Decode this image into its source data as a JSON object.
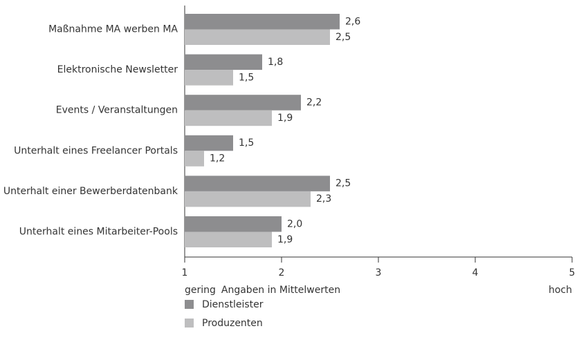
{
  "chart_data": {
    "type": "barh",
    "categories": [
      "Maßnahme MA werben MA",
      "Elektronische Newsletter",
      "Events / Veranstaltungen",
      "Unterhalt eines Freelancer Portals",
      "Unterhalt einer Bewerberdatenbank",
      "Unterhalt eines Mitarbeiter-Pools"
    ],
    "series": [
      {
        "name": "Dienstleister",
        "color": "#8d8d8f",
        "values": [
          2.6,
          1.8,
          2.2,
          1.5,
          2.5,
          2.0
        ],
        "value_labels": [
          "2,6",
          "1,8",
          "2,2",
          "1,5",
          "2,5",
          "2,0"
        ]
      },
      {
        "name": "Produzenten",
        "color": "#bebebf",
        "values": [
          2.5,
          1.5,
          1.9,
          1.2,
          2.3,
          1.9
        ],
        "value_labels": [
          "2,5",
          "1,5",
          "1,9",
          "1,2",
          "2,3",
          "1,9"
        ]
      }
    ],
    "xlim": [
      1,
      5
    ],
    "xticks": [
      1,
      2,
      3,
      4,
      5
    ],
    "xlabel": "Angaben in Mittelwerten",
    "xlabel_low": "gering",
    "xlabel_high": "hoch",
    "legend": "bottom-left"
  }
}
